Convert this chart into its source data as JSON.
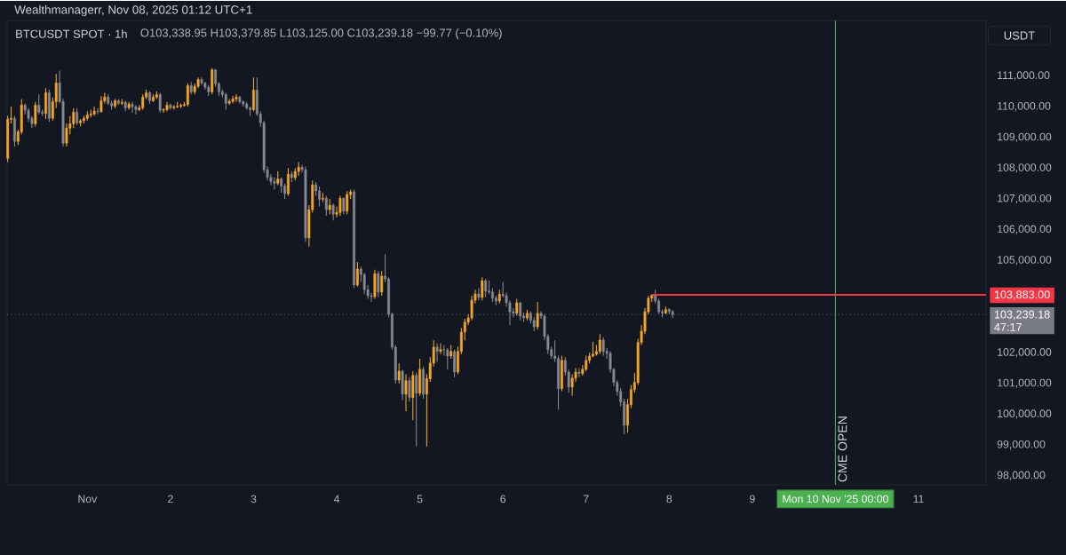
{
  "chart_data": {
    "type": "candlestick",
    "title": "BTCUSDT SPOT · 1h",
    "subtitle": "O103,338.95  H103,379.85  L103,125.00  C103,239.18  −99.77 (−0.10%)",
    "ylabel": "USDT",
    "annotations": [
      "Wealthmanagerr, Nov 08, 2025 01:12 UTC+1",
      "47:17"
    ],
    "xlim": [
      "2025-10-31T00:50",
      "2025-11-11T19:30"
    ],
    "ylim": [
      97700,
      112800
    ],
    "xticks": [
      {
        "value": "2025-11-01",
        "label": "Nov"
      },
      {
        "value": "2025-11-02",
        "label": "2"
      },
      {
        "value": "2025-11-03",
        "label": "3"
      },
      {
        "value": "2025-11-04",
        "label": "4"
      },
      {
        "value": "2025-11-05",
        "label": "5"
      },
      {
        "value": "2025-11-06",
        "label": "6"
      },
      {
        "value": "2025-11-07",
        "label": "7"
      },
      {
        "value": "2025-11-08",
        "label": "8"
      },
      {
        "value": "2025-11-09",
        "label": "9"
      },
      {
        "value": "2025-11-10",
        "label": "Mon 10 Nov '25  00:00"
      },
      {
        "value": "2025-11-11",
        "label": "11"
      }
    ],
    "yticks": [
      {
        "value": 98000,
        "label": "98,000.00"
      },
      {
        "value": 99000,
        "label": "99,000.00"
      },
      {
        "value": 100000,
        "label": "100,000.00"
      },
      {
        "value": 101000,
        "label": "101,000.00"
      },
      {
        "value": 102000,
        "label": "102,000.00"
      },
      {
        "value": 105000,
        "label": "105,000.00"
      },
      {
        "value": 106000,
        "label": "106,000.00"
      },
      {
        "value": 107000,
        "label": "107,000.00"
      },
      {
        "value": 108000,
        "label": "108,000.00"
      },
      {
        "value": 109000,
        "label": "109,000.00"
      },
      {
        "value": 110000,
        "label": "110,000.00"
      },
      {
        "value": 111000,
        "label": "111,000.00"
      }
    ],
    "ref_lines": [
      {
        "axis": "x",
        "value": "2025-11-10",
        "label": "CME OPEN",
        "color": "#4caf50"
      },
      {
        "axis": "y",
        "value": 103883,
        "label": "103,883.00",
        "color": "#f23645"
      },
      {
        "axis": "y",
        "value": 103239.18,
        "label": "103,239.18",
        "color": "#787b86",
        "line_style": "dotted"
      }
    ],
    "x": [
      "2025-10-31T01:00",
      "2025-10-31T02:00",
      "2025-10-31T03:00",
      "2025-10-31T04:00",
      "2025-10-31T05:00",
      "2025-10-31T06:00",
      "2025-10-31T07:00",
      "2025-10-31T08:00",
      "2025-10-31T09:00",
      "2025-10-31T10:00",
      "2025-10-31T11:00",
      "2025-10-31T12:00",
      "2025-10-31T13:00",
      "2025-10-31T14:00",
      "2025-10-31T15:00",
      "2025-10-31T16:00",
      "2025-10-31T17:00",
      "2025-10-31T18:00",
      "2025-10-31T19:00",
      "2025-10-31T20:00",
      "2025-10-31T21:00",
      "2025-10-31T22:00",
      "2025-10-31T23:00",
      "2025-11-01T00:00",
      "2025-11-01T01:00",
      "2025-11-01T02:00",
      "2025-11-01T03:00",
      "2025-11-01T04:00",
      "2025-11-01T05:00",
      "2025-11-01T06:00",
      "2025-11-01T07:00",
      "2025-11-01T08:00",
      "2025-11-01T09:00",
      "2025-11-01T10:00",
      "2025-11-01T11:00",
      "2025-11-01T12:00",
      "2025-11-01T13:00",
      "2025-11-01T14:00",
      "2025-11-01T15:00",
      "2025-11-01T16:00",
      "2025-11-01T17:00",
      "2025-11-01T18:00",
      "2025-11-01T19:00",
      "2025-11-01T20:00",
      "2025-11-01T21:00",
      "2025-11-01T22:00",
      "2025-11-01T23:00",
      "2025-11-02T00:00",
      "2025-11-02T01:00",
      "2025-11-02T02:00",
      "2025-11-02T03:00",
      "2025-11-02T04:00",
      "2025-11-02T05:00",
      "2025-11-02T06:00",
      "2025-11-02T07:00",
      "2025-11-02T08:00",
      "2025-11-02T09:00",
      "2025-11-02T10:00",
      "2025-11-02T11:00",
      "2025-11-02T12:00",
      "2025-11-02T13:00",
      "2025-11-02T14:00",
      "2025-11-02T15:00",
      "2025-11-02T16:00",
      "2025-11-02T17:00",
      "2025-11-02T18:00",
      "2025-11-02T19:00",
      "2025-11-02T20:00",
      "2025-11-02T21:00",
      "2025-11-02T22:00",
      "2025-11-02T23:00",
      "2025-11-03T00:00",
      "2025-11-03T01:00",
      "2025-11-03T02:00",
      "2025-11-03T03:00",
      "2025-11-03T04:00",
      "2025-11-03T05:00",
      "2025-11-03T06:00",
      "2025-11-03T07:00",
      "2025-11-03T08:00",
      "2025-11-03T09:00",
      "2025-11-03T10:00",
      "2025-11-03T11:00",
      "2025-11-03T12:00",
      "2025-11-03T13:00",
      "2025-11-03T14:00",
      "2025-11-03T15:00",
      "2025-11-03T16:00",
      "2025-11-03T17:00",
      "2025-11-03T18:00",
      "2025-11-03T19:00",
      "2025-11-03T20:00",
      "2025-11-03T21:00",
      "2025-11-03T22:00",
      "2025-11-03T23:00",
      "2025-11-04T00:00",
      "2025-11-04T01:00",
      "2025-11-04T02:00",
      "2025-11-04T03:00",
      "2025-11-04T04:00",
      "2025-11-04T05:00",
      "2025-11-04T06:00",
      "2025-11-04T07:00",
      "2025-11-04T08:00",
      "2025-11-04T09:00",
      "2025-11-04T10:00",
      "2025-11-04T11:00",
      "2025-11-04T12:00",
      "2025-11-04T13:00",
      "2025-11-04T14:00",
      "2025-11-04T15:00",
      "2025-11-04T16:00",
      "2025-11-04T17:00",
      "2025-11-04T18:00",
      "2025-11-04T19:00",
      "2025-11-04T20:00",
      "2025-11-04T21:00",
      "2025-11-04T22:00",
      "2025-11-04T23:00",
      "2025-11-05T00:00",
      "2025-11-05T01:00",
      "2025-11-05T02:00",
      "2025-11-05T03:00",
      "2025-11-05T04:00",
      "2025-11-05T05:00",
      "2025-11-05T06:00",
      "2025-11-05T07:00",
      "2025-11-05T08:00",
      "2025-11-05T09:00",
      "2025-11-05T10:00",
      "2025-11-05T11:00",
      "2025-11-05T12:00",
      "2025-11-05T13:00",
      "2025-11-05T14:00",
      "2025-11-05T15:00",
      "2025-11-05T16:00",
      "2025-11-05T17:00",
      "2025-11-05T18:00",
      "2025-11-05T19:00",
      "2025-11-05T20:00",
      "2025-11-05T21:00",
      "2025-11-05T22:00",
      "2025-11-05T23:00",
      "2025-11-06T00:00",
      "2025-11-06T01:00",
      "2025-11-06T02:00",
      "2025-11-06T03:00",
      "2025-11-06T04:00",
      "2025-11-06T05:00",
      "2025-11-06T06:00",
      "2025-11-06T07:00",
      "2025-11-06T08:00",
      "2025-11-06T09:00",
      "2025-11-06T10:00",
      "2025-11-06T11:00",
      "2025-11-06T12:00",
      "2025-11-06T13:00",
      "2025-11-06T14:00",
      "2025-11-06T15:00",
      "2025-11-06T16:00",
      "2025-11-06T17:00",
      "2025-11-06T18:00",
      "2025-11-06T19:00",
      "2025-11-06T20:00",
      "2025-11-06T21:00",
      "2025-11-06T22:00",
      "2025-11-06T23:00",
      "2025-11-07T00:00",
      "2025-11-07T01:00",
      "2025-11-07T02:00",
      "2025-11-07T03:00",
      "2025-11-07T04:00",
      "2025-11-07T05:00",
      "2025-11-07T06:00",
      "2025-11-07T07:00",
      "2025-11-07T08:00",
      "2025-11-07T09:00",
      "2025-11-07T10:00",
      "2025-11-07T11:00",
      "2025-11-07T12:00",
      "2025-11-07T13:00",
      "2025-11-07T14:00",
      "2025-11-07T15:00",
      "2025-11-07T16:00",
      "2025-11-07T17:00",
      "2025-11-07T18:00",
      "2025-11-07T19:00",
      "2025-11-07T20:00",
      "2025-11-07T21:00",
      "2025-11-07T22:00",
      "2025-11-07T23:00",
      "2025-11-08T00:00",
      "2025-11-08T01:00"
    ],
    "ohlc": [
      [
        108320,
        109700,
        108200,
        109590
      ],
      [
        109590,
        110000,
        109450,
        109620
      ],
      [
        109620,
        109700,
        108700,
        108870
      ],
      [
        108870,
        109250,
        108750,
        109180
      ],
      [
        109180,
        110250,
        109100,
        110050
      ],
      [
        110050,
        110100,
        109750,
        109880
      ],
      [
        109880,
        109950,
        109500,
        109620
      ],
      [
        109620,
        109700,
        109300,
        109440
      ],
      [
        109440,
        110150,
        109350,
        110050
      ],
      [
        110050,
        110400,
        109750,
        109820
      ],
      [
        109820,
        109900,
        109700,
        109780
      ],
      [
        109780,
        110600,
        109600,
        110450
      ],
      [
        110450,
        110550,
        109500,
        109620
      ],
      [
        109620,
        110300,
        109550,
        110160
      ],
      [
        110160,
        111060,
        109950,
        110770
      ],
      [
        110770,
        111170,
        110100,
        110160
      ],
      [
        110160,
        110250,
        108700,
        108810
      ],
      [
        108810,
        109450,
        108700,
        109300
      ],
      [
        109300,
        109700,
        109100,
        109440
      ],
      [
        109440,
        109950,
        109300,
        109820
      ],
      [
        109820,
        109950,
        109400,
        109470
      ],
      [
        109470,
        109600,
        109350,
        109540
      ],
      [
        109540,
        109700,
        109450,
        109620
      ],
      [
        109620,
        109850,
        109550,
        109730
      ],
      [
        109730,
        109900,
        109650,
        109760
      ],
      [
        109760,
        110000,
        109700,
        109850
      ],
      [
        109850,
        109950,
        109750,
        109840
      ],
      [
        109840,
        110350,
        109800,
        110190
      ],
      [
        110190,
        110450,
        110100,
        110310
      ],
      [
        110310,
        110400,
        110050,
        110110
      ],
      [
        110110,
        110200,
        109900,
        110020
      ],
      [
        110020,
        110250,
        109950,
        110190
      ],
      [
        110190,
        110250,
        110050,
        110110
      ],
      [
        110110,
        110250,
        110050,
        110140
      ],
      [
        110140,
        110200,
        109850,
        109960
      ],
      [
        109960,
        110150,
        109900,
        110080
      ],
      [
        110080,
        110150,
        109800,
        109990
      ],
      [
        109990,
        110050,
        109750,
        109900
      ],
      [
        109900,
        110050,
        109850,
        109960
      ],
      [
        109960,
        110400,
        109900,
        110310
      ],
      [
        110310,
        110550,
        110250,
        110450
      ],
      [
        110450,
        110500,
        110100,
        110190
      ],
      [
        110190,
        110400,
        110150,
        110310
      ],
      [
        110310,
        110500,
        110250,
        110390
      ],
      [
        110390,
        110450,
        109800,
        109880
      ],
      [
        109880,
        109950,
        109800,
        109900
      ],
      [
        109900,
        110150,
        109850,
        110050
      ],
      [
        110050,
        110100,
        109900,
        109960
      ],
      [
        109960,
        110050,
        109900,
        109990
      ],
      [
        109990,
        110150,
        109950,
        110010
      ],
      [
        110010,
        110100,
        109950,
        110040
      ],
      [
        110040,
        110150,
        110000,
        110070
      ],
      [
        110070,
        110750,
        110000,
        110680
      ],
      [
        110680,
        110800,
        110400,
        110480
      ],
      [
        110480,
        110750,
        110400,
        110660
      ],
      [
        110660,
        110950,
        110600,
        110880
      ],
      [
        110880,
        110950,
        110700,
        110770
      ],
      [
        110770,
        110800,
        110550,
        110630
      ],
      [
        110630,
        110700,
        110350,
        110480
      ],
      [
        110480,
        111250,
        110400,
        111200
      ],
      [
        111200,
        111200,
        110650,
        110740
      ],
      [
        110740,
        110800,
        110350,
        110480
      ],
      [
        110480,
        110550,
        110300,
        110390
      ],
      [
        110390,
        110450,
        109900,
        110110
      ],
      [
        110110,
        110250,
        110050,
        110170
      ],
      [
        110170,
        110350,
        110100,
        110250
      ],
      [
        110250,
        110400,
        110150,
        110310
      ],
      [
        110310,
        110350,
        110100,
        110160
      ],
      [
        110160,
        110200,
        110000,
        110080
      ],
      [
        110080,
        110150,
        109900,
        109960
      ],
      [
        109960,
        110000,
        109700,
        109900
      ],
      [
        109900,
        110950,
        109850,
        110540
      ],
      [
        110540,
        110950,
        109700,
        109760
      ],
      [
        109760,
        109850,
        109350,
        109470
      ],
      [
        109470,
        109550,
        107850,
        107950
      ],
      [
        107950,
        108050,
        107600,
        107700
      ],
      [
        107700,
        107800,
        107450,
        107570
      ],
      [
        107570,
        107700,
        107300,
        107510
      ],
      [
        107510,
        107900,
        107450,
        107650
      ],
      [
        107650,
        107700,
        107200,
        107420
      ],
      [
        107420,
        107500,
        107000,
        107170
      ],
      [
        107170,
        108000,
        107100,
        107800
      ],
      [
        107800,
        107900,
        107550,
        107690
      ],
      [
        107690,
        108000,
        107600,
        107890
      ],
      [
        107890,
        108200,
        107750,
        108030
      ],
      [
        108030,
        108100,
        107850,
        107950
      ],
      [
        107950,
        108050,
        105600,
        105730
      ],
      [
        105730,
        106800,
        105450,
        106650
      ],
      [
        106650,
        107600,
        106550,
        107460
      ],
      [
        107460,
        107550,
        107100,
        107260
      ],
      [
        107260,
        107400,
        106750,
        106990
      ],
      [
        106990,
        107200,
        106900,
        107020
      ],
      [
        107020,
        107100,
        106450,
        106650
      ],
      [
        106650,
        107000,
        106500,
        106790
      ],
      [
        106790,
        106850,
        106300,
        106500
      ],
      [
        106500,
        106750,
        106400,
        106560
      ],
      [
        106560,
        107100,
        106450,
        107020
      ],
      [
        107020,
        107050,
        106500,
        106600
      ],
      [
        106600,
        107250,
        106500,
        107140
      ],
      [
        107140,
        107300,
        107000,
        107230
      ],
      [
        107230,
        107300,
        104100,
        104200
      ],
      [
        104200,
        104950,
        104150,
        104720
      ],
      [
        104720,
        104800,
        104300,
        104540
      ],
      [
        104540,
        104600,
        103900,
        104050
      ],
      [
        104050,
        104200,
        103750,
        103850
      ],
      [
        103850,
        103950,
        103650,
        103820
      ],
      [
        103820,
        104700,
        103750,
        104570
      ],
      [
        104570,
        104650,
        103800,
        103970
      ],
      [
        103970,
        104650,
        103850,
        104490
      ],
      [
        104490,
        105200,
        104300,
        104400
      ],
      [
        104400,
        104450,
        103150,
        103250
      ],
      [
        103250,
        103300,
        102100,
        102180
      ],
      [
        102180,
        102250,
        101000,
        101110
      ],
      [
        101110,
        101650,
        101000,
        101400
      ],
      [
        101400,
        101450,
        100450,
        100650
      ],
      [
        100650,
        101300,
        100100,
        101090
      ],
      [
        101090,
        101200,
        100400,
        100540
      ],
      [
        100540,
        101400,
        99800,
        101260
      ],
      [
        101260,
        101350,
        98960,
        100680
      ],
      [
        100680,
        101800,
        100600,
        101460
      ],
      [
        101460,
        101550,
        100500,
        100650
      ],
      [
        100650,
        101300,
        98950,
        101150
      ],
      [
        101150,
        101850,
        101050,
        101660
      ],
      [
        101660,
        102400,
        101550,
        102180
      ],
      [
        102180,
        102300,
        101700,
        102040
      ],
      [
        102040,
        102300,
        101950,
        102100
      ],
      [
        102100,
        102250,
        101900,
        102090
      ],
      [
        102090,
        102150,
        101450,
        101890
      ],
      [
        101890,
        102250,
        101800,
        102040
      ],
      [
        102040,
        102100,
        101200,
        101370
      ],
      [
        101370,
        102200,
        101300,
        102040
      ],
      [
        102040,
        102800,
        101950,
        102670
      ],
      [
        102670,
        103100,
        102400,
        102990
      ],
      [
        102990,
        103250,
        102900,
        103130
      ],
      [
        103130,
        103850,
        103050,
        103710
      ],
      [
        103710,
        104050,
        103600,
        103910
      ],
      [
        103910,
        104100,
        103700,
        103800
      ],
      [
        103800,
        104450,
        103700,
        104340
      ],
      [
        104340,
        104400,
        103800,
        104000
      ],
      [
        104000,
        104350,
        103900,
        103970
      ],
      [
        103970,
        104100,
        103650,
        103770
      ],
      [
        103770,
        103850,
        103550,
        103680
      ],
      [
        103680,
        104050,
        103600,
        103900
      ],
      [
        103900,
        104300,
        103800,
        103850
      ],
      [
        103850,
        103950,
        103500,
        103620
      ],
      [
        103620,
        103700,
        102900,
        103330
      ],
      [
        103330,
        103450,
        103150,
        103280
      ],
      [
        103280,
        103750,
        103200,
        103620
      ],
      [
        103620,
        103650,
        103050,
        103190
      ],
      [
        103190,
        103300,
        103000,
        103130
      ],
      [
        103130,
        103400,
        103050,
        103280
      ],
      [
        103280,
        103350,
        102950,
        103050
      ],
      [
        103050,
        103150,
        102700,
        102840
      ],
      [
        102840,
        103650,
        102750,
        103280
      ],
      [
        103280,
        103350,
        103100,
        103190
      ],
      [
        103190,
        103250,
        102400,
        102530
      ],
      [
        102530,
        102600,
        101950,
        102100
      ],
      [
        102100,
        102200,
        101800,
        101890
      ],
      [
        101890,
        102400,
        101700,
        101810
      ],
      [
        101810,
        101900,
        100150,
        100830
      ],
      [
        100830,
        101900,
        100750,
        101750
      ],
      [
        101750,
        101850,
        101250,
        101370
      ],
      [
        101370,
        101450,
        100700,
        100880
      ],
      [
        100880,
        101300,
        100600,
        101170
      ],
      [
        101170,
        101500,
        101050,
        101370
      ],
      [
        101370,
        101500,
        101200,
        101320
      ],
      [
        101320,
        101600,
        101250,
        101460
      ],
      [
        101460,
        101900,
        101400,
        101750
      ],
      [
        101750,
        102000,
        101650,
        101890
      ],
      [
        101890,
        102350,
        101850,
        101950
      ],
      [
        101950,
        102250,
        101900,
        102040
      ],
      [
        102040,
        102600,
        101950,
        102410
      ],
      [
        102410,
        102500,
        101900,
        102040
      ],
      [
        102040,
        102150,
        101800,
        101980
      ],
      [
        101980,
        102050,
        101350,
        101460
      ],
      [
        101460,
        101500,
        100900,
        101030
      ],
      [
        101030,
        101100,
        100600,
        100740
      ],
      [
        100740,
        100850,
        100250,
        100400
      ],
      [
        100400,
        100500,
        99350,
        99640
      ],
      [
        99640,
        100500,
        99400,
        100310
      ],
      [
        100310,
        100950,
        100200,
        100800
      ],
      [
        100800,
        101350,
        100700,
        101030
      ],
      [
        101030,
        102450,
        100950,
        102330
      ],
      [
        102330,
        102900,
        102250,
        102700
      ],
      [
        102700,
        103450,
        102600,
        103330
      ],
      [
        103330,
        103850,
        103250,
        103770
      ],
      [
        103770,
        103883,
        103650,
        103880
      ],
      [
        103880,
        104050,
        103600,
        103680
      ],
      [
        103680,
        103750,
        103250,
        103330
      ],
      [
        103330,
        103400,
        103150,
        103290
      ],
      [
        103290,
        103500,
        103250,
        103400
      ],
      [
        103400,
        103450,
        103250,
        103338.95
      ],
      [
        103338.95,
        103379.85,
        103125,
        103239.18
      ]
    ]
  }
}
